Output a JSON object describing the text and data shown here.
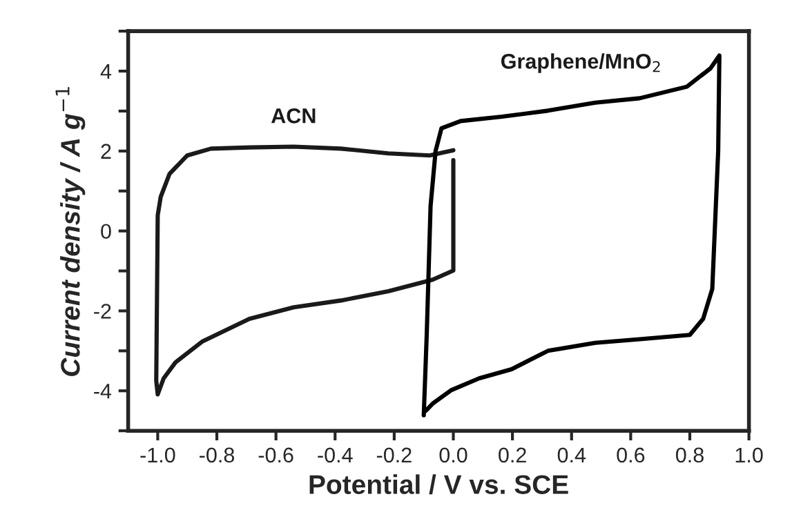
{
  "chart_data": {
    "type": "line",
    "xlabel": "Potential / V vs. SCE",
    "ylabel": "Current density / A g$^{−1}$",
    "xlim": [
      -1.1,
      1.0
    ],
    "ylim": [
      -5,
      5
    ],
    "xticks": [
      {
        "value": -1.0,
        "label": "-1.0"
      },
      {
        "value": -0.8,
        "label": "-0.8"
      },
      {
        "value": -0.6,
        "label": "-0.6"
      },
      {
        "value": -0.4,
        "label": "-0.4"
      },
      {
        "value": -0.2,
        "label": "-0.2"
      },
      {
        "value": 0.0,
        "label": "0.0"
      },
      {
        "value": 0.2,
        "label": "0.2"
      },
      {
        "value": 0.4,
        "label": "0.4"
      },
      {
        "value": 0.6,
        "label": "0.6"
      },
      {
        "value": 0.8,
        "label": "0.8"
      },
      {
        "value": 1.0,
        "label": "1.0"
      }
    ],
    "yticks": [
      {
        "value": -5,
        "label": null
      },
      -4,
      {
        "value": -3,
        "label": null
      },
      -2,
      {
        "value": -1,
        "label": null
      },
      0,
      {
        "value": 1,
        "label": null
      },
      2,
      {
        "value": 3,
        "label": null
      },
      4,
      {
        "value": 5,
        "label": null
      }
    ],
    "grid": false,
    "legend": false,
    "marker": "none",
    "line_style": "solid",
    "series": [
      {
        "name": "ACN",
        "color": "#1a1a1a",
        "x": [
          0.0,
          -0.08,
          -0.22,
          -0.38,
          -0.54,
          -0.69,
          -0.82,
          -0.9,
          -0.96,
          -0.99,
          -1.0,
          -1.005,
          -1.0,
          -0.98,
          -0.94,
          -0.85,
          -0.69,
          -0.54,
          -0.38,
          -0.22,
          -0.07,
          0.0,
          0.0
        ],
        "values": [
          2.02,
          1.89,
          1.94,
          2.06,
          2.11,
          2.09,
          2.06,
          1.89,
          1.43,
          0.85,
          0.39,
          -3.75,
          -4.09,
          -3.69,
          -3.29,
          -2.77,
          -2.2,
          -1.91,
          -1.74,
          -1.51,
          -1.22,
          -0.99,
          1.77
        ]
      },
      {
        "name": "Graphene/MnO$_{2}$",
        "color": "#000000",
        "x": [
          -0.1,
          -0.09,
          -0.077,
          -0.06,
          -0.04,
          0.025,
          0.165,
          0.32,
          0.48,
          0.63,
          0.79,
          0.87,
          0.9,
          0.896,
          0.876,
          0.845,
          0.8,
          0.63,
          0.48,
          0.32,
          0.197,
          0.087,
          -0.006,
          -0.07,
          -0.093
        ],
        "values": [
          -4.61,
          -2.6,
          0.62,
          2.0,
          2.57,
          2.75,
          2.86,
          3.01,
          3.21,
          3.32,
          3.61,
          4.07,
          4.39,
          2.0,
          -1.45,
          -2.2,
          -2.6,
          -2.71,
          -2.8,
          -3.0,
          -3.46,
          -3.69,
          -3.98,
          -4.32,
          -4.5
        ]
      }
    ]
  }
}
